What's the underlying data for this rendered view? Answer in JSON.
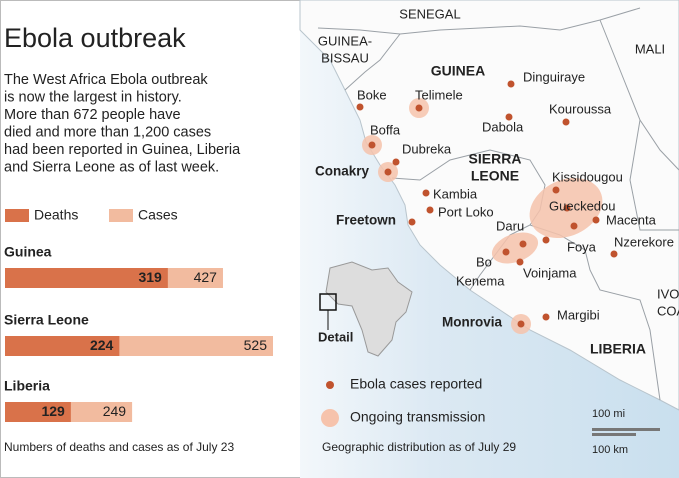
{
  "chart_data": {
    "type": "bar",
    "orientation": "horizontal",
    "title": "Ebola outbreak",
    "subtitle_lines": [
      "The West Africa Ebola outbreak",
      "is now the largest in history.",
      "More than 672 people have",
      "died and more than 1,200 cases",
      "had been reported in Guinea, Liberia",
      "and Sierra Leone as of last week."
    ],
    "categories": [
      "Guinea",
      "Sierra Leone",
      "Liberia"
    ],
    "series": [
      {
        "name": "Deaths",
        "color": "#d9724a",
        "values": [
          319,
          224,
          129
        ]
      },
      {
        "name": "Cases",
        "color": "#f2bb9f",
        "values": [
          427,
          525,
          249
        ]
      }
    ],
    "note": "Numbers of deaths and cases as of July 23"
  },
  "map": {
    "countries": [
      {
        "lines": [
          "SENEGAL"
        ],
        "bold": false
      },
      {
        "lines": [
          "GUINEA-",
          "BISSAU"
        ],
        "bold": false
      },
      {
        "lines": [
          "MALI"
        ],
        "bold": false
      },
      {
        "lines": [
          "GUINEA"
        ],
        "bold": true
      },
      {
        "lines": [
          "SIERRA",
          "LEONE"
        ],
        "bold": true
      },
      {
        "lines": [
          "LIBERIA"
        ],
        "bold": true
      },
      {
        "lines": [
          "IVORY",
          "COAST"
        ],
        "bold": false
      }
    ],
    "cities": [
      {
        "label": "Boke",
        "bold": false
      },
      {
        "label": "Telimele",
        "bold": false
      },
      {
        "label": "Dinguiraye",
        "bold": false
      },
      {
        "label": "Kouroussa",
        "bold": false
      },
      {
        "label": "Dabola",
        "bold": false
      },
      {
        "label": "Boffa",
        "bold": false
      },
      {
        "label": "Dubreka",
        "bold": false
      },
      {
        "label": "Conakry",
        "bold": true
      },
      {
        "label": "Kissidougou",
        "bold": false
      },
      {
        "label": "Kambia",
        "bold": false
      },
      {
        "label": "Port Loko",
        "bold": false
      },
      {
        "label": "Freetown",
        "bold": true
      },
      {
        "label": "Gueckedou",
        "bold": false
      },
      {
        "label": "Macenta",
        "bold": false
      },
      {
        "label": "Daru",
        "bold": false
      },
      {
        "label": "Foya",
        "bold": false
      },
      {
        "label": "Nzerekore",
        "bold": false
      },
      {
        "label": "Bo",
        "bold": false
      },
      {
        "label": "Voinjama",
        "bold": false
      },
      {
        "label": "Kenema",
        "bold": false
      },
      {
        "label": "Monrovia",
        "bold": true
      },
      {
        "label": "Margibi",
        "bold": false
      }
    ],
    "legend": [
      "Ebola cases reported",
      "Ongoing transmission"
    ],
    "detail": "Detail",
    "scale": [
      "100 mi",
      "100 km"
    ],
    "note": "Geographic distribution as of July 29"
  }
}
